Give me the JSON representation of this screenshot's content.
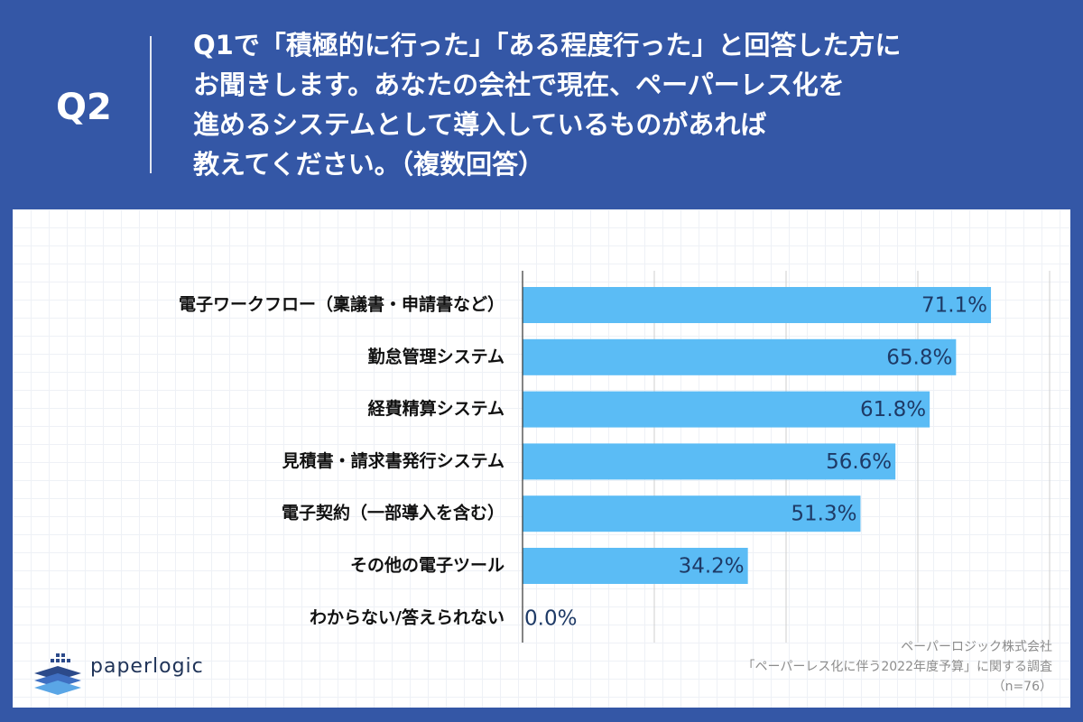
{
  "header": {
    "q_label": "Q2",
    "question_lines": [
      "Q1で「積極的に行った」「ある程度行った」と回答した方に",
      "お聞きします。あなたの会社で現在、ペーパーレス化を",
      "進めるシステムとして導入しているものがあれば",
      "教えてください。（複数回答）"
    ]
  },
  "chart_data": {
    "type": "bar",
    "orientation": "horizontal",
    "categories": [
      "電子ワークフロー（稟議書・申請書など）",
      "勤怠管理システム",
      "経費精算システム",
      "見積書・請求書発行システム",
      "電子契約（一部導入を含む）",
      "その他の電子ツール",
      "わからない/答えられない"
    ],
    "values": [
      71.1,
      65.8,
      61.8,
      56.6,
      51.3,
      34.2,
      0.0
    ],
    "value_labels": [
      "71.1%",
      "65.8%",
      "61.8%",
      "56.6%",
      "51.3%",
      "34.2%",
      "0.0%"
    ],
    "unit": "%",
    "xlim": [
      0,
      80
    ],
    "bar_color": "#5bbcf5",
    "grid": true
  },
  "source": {
    "company": "ペーパーロジック株式会社",
    "survey": "「ペーパーレス化に伴う2022年度予算」に関する調査",
    "n": "（n=76）"
  },
  "logo": {
    "text": "paperlogic",
    "icon": "stacked-paper-icon"
  },
  "colors": {
    "background": "#3457a6",
    "bar": "#5bbcf5",
    "value_text": "#1e3a66"
  }
}
